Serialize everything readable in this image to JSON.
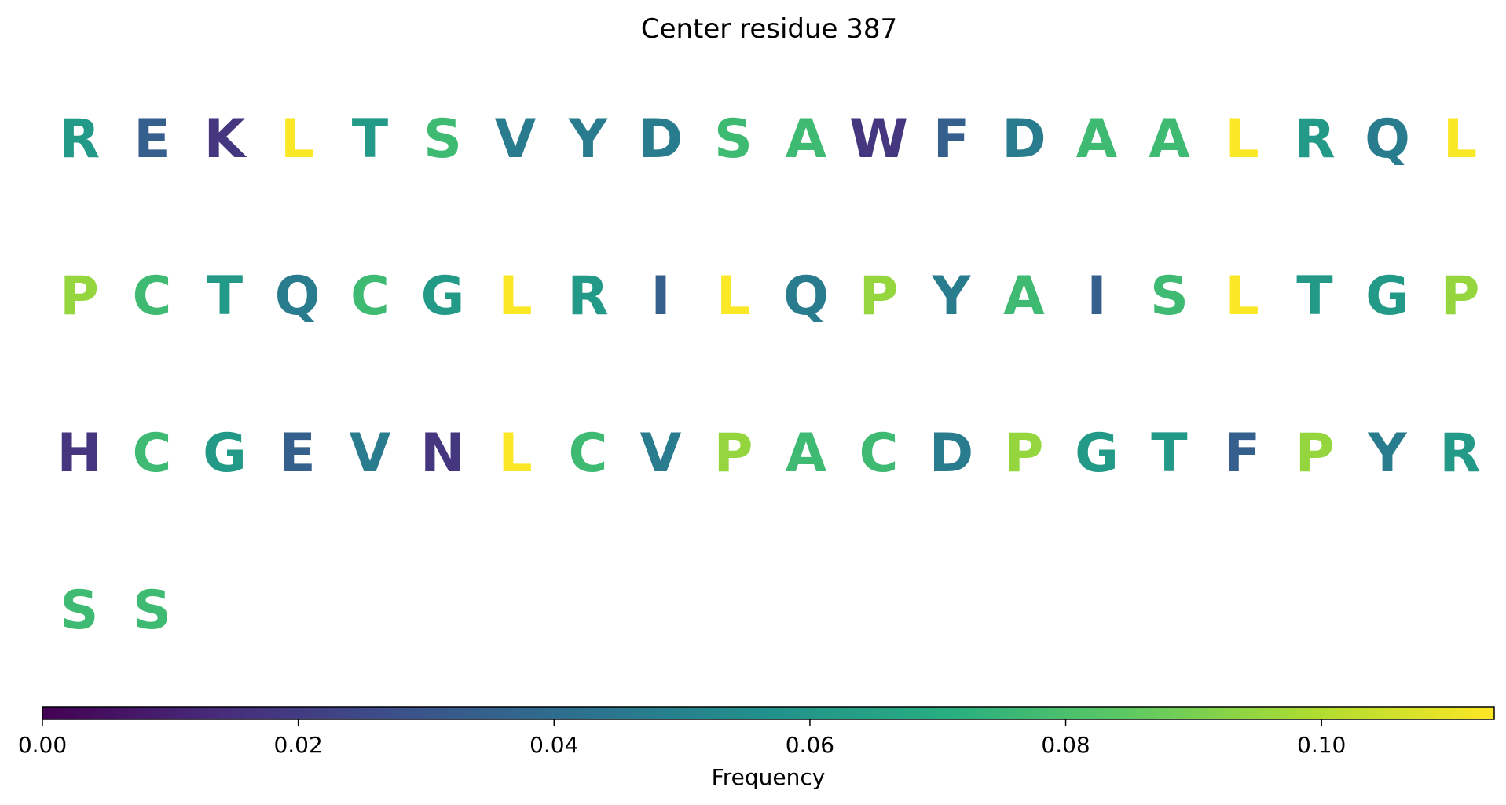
{
  "chart_data": {
    "type": "heatmap",
    "title": "Center residue 387",
    "colormap": "viridis",
    "colorbar": {
      "label": "Frequency",
      "range": [
        0,
        0.1135
      ],
      "ticks": [
        0.0,
        0.02,
        0.04,
        0.06,
        0.08,
        0.1
      ],
      "tick_labels": [
        "0.00",
        "0.02",
        "0.04",
        "0.06",
        "0.08",
        "0.10"
      ]
    },
    "residues_per_row": 20,
    "residues": [
      {
        "letter": "R",
        "value": 0.061
      },
      {
        "letter": "E",
        "value": 0.034
      },
      {
        "letter": "K",
        "value": 0.018
      },
      {
        "letter": "L",
        "value": 0.113
      },
      {
        "letter": "T",
        "value": 0.061
      },
      {
        "letter": "S",
        "value": 0.077
      },
      {
        "letter": "V",
        "value": 0.047
      },
      {
        "letter": "Y",
        "value": 0.047
      },
      {
        "letter": "D",
        "value": 0.047
      },
      {
        "letter": "S",
        "value": 0.077
      },
      {
        "letter": "A",
        "value": 0.077
      },
      {
        "letter": "W",
        "value": 0.018
      },
      {
        "letter": "F",
        "value": 0.034
      },
      {
        "letter": "D",
        "value": 0.047
      },
      {
        "letter": "A",
        "value": 0.077
      },
      {
        "letter": "A",
        "value": 0.077
      },
      {
        "letter": "L",
        "value": 0.113
      },
      {
        "letter": "R",
        "value": 0.061
      },
      {
        "letter": "Q",
        "value": 0.047
      },
      {
        "letter": "L",
        "value": 0.113
      },
      {
        "letter": "P",
        "value": 0.095
      },
      {
        "letter": "C",
        "value": 0.077
      },
      {
        "letter": "T",
        "value": 0.061
      },
      {
        "letter": "Q",
        "value": 0.047
      },
      {
        "letter": "C",
        "value": 0.077
      },
      {
        "letter": "G",
        "value": 0.061
      },
      {
        "letter": "L",
        "value": 0.113
      },
      {
        "letter": "R",
        "value": 0.061
      },
      {
        "letter": "I",
        "value": 0.034
      },
      {
        "letter": "L",
        "value": 0.113
      },
      {
        "letter": "Q",
        "value": 0.047
      },
      {
        "letter": "P",
        "value": 0.095
      },
      {
        "letter": "Y",
        "value": 0.047
      },
      {
        "letter": "A",
        "value": 0.077
      },
      {
        "letter": "I",
        "value": 0.034
      },
      {
        "letter": "S",
        "value": 0.077
      },
      {
        "letter": "L",
        "value": 0.113
      },
      {
        "letter": "T",
        "value": 0.061
      },
      {
        "letter": "G",
        "value": 0.061
      },
      {
        "letter": "P",
        "value": 0.095
      },
      {
        "letter": "H",
        "value": 0.018
      },
      {
        "letter": "C",
        "value": 0.077
      },
      {
        "letter": "G",
        "value": 0.061
      },
      {
        "letter": "E",
        "value": 0.034
      },
      {
        "letter": "V",
        "value": 0.047
      },
      {
        "letter": "N",
        "value": 0.018
      },
      {
        "letter": "L",
        "value": 0.113
      },
      {
        "letter": "C",
        "value": 0.077
      },
      {
        "letter": "V",
        "value": 0.047
      },
      {
        "letter": "P",
        "value": 0.095
      },
      {
        "letter": "A",
        "value": 0.077
      },
      {
        "letter": "C",
        "value": 0.077
      },
      {
        "letter": "D",
        "value": 0.047
      },
      {
        "letter": "P",
        "value": 0.095
      },
      {
        "letter": "G",
        "value": 0.061
      },
      {
        "letter": "T",
        "value": 0.061
      },
      {
        "letter": "F",
        "value": 0.034
      },
      {
        "letter": "P",
        "value": 0.095
      },
      {
        "letter": "Y",
        "value": 0.047
      },
      {
        "letter": "R",
        "value": 0.061
      },
      {
        "letter": "S",
        "value": 0.077
      },
      {
        "letter": "S",
        "value": 0.077
      }
    ]
  }
}
